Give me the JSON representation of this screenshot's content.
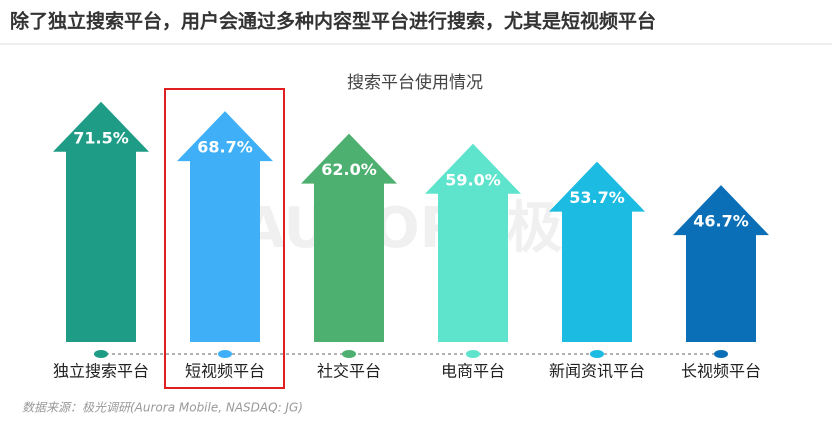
{
  "headline": "除了独立搜索平台，用户会通过多种内容型平台进行搜索，尤其是短视频平台",
  "chart_data": {
    "type": "arrow-bar",
    "title": "搜索平台使用情况",
    "categories": [
      "独立搜索平台",
      "短视频平台",
      "社交平台",
      "电商平台",
      "新闻资讯平台",
      "长视频平台"
    ],
    "values": [
      71.5,
      68.7,
      62.0,
      59.0,
      53.7,
      46.7
    ],
    "value_labels": [
      "71.5%",
      "68.7%",
      "62.0%",
      "59.0%",
      "53.7%",
      "46.7%"
    ],
    "colors": [
      "#1e9c86",
      "#3fb0f7",
      "#4db070",
      "#5ee3cc",
      "#1bbbe2",
      "#0b6fb8"
    ]
  },
  "watermark": "AURORA极光",
  "source": "数据来源：极光调研(Aurora Mobile, NASDAQ: JG)"
}
